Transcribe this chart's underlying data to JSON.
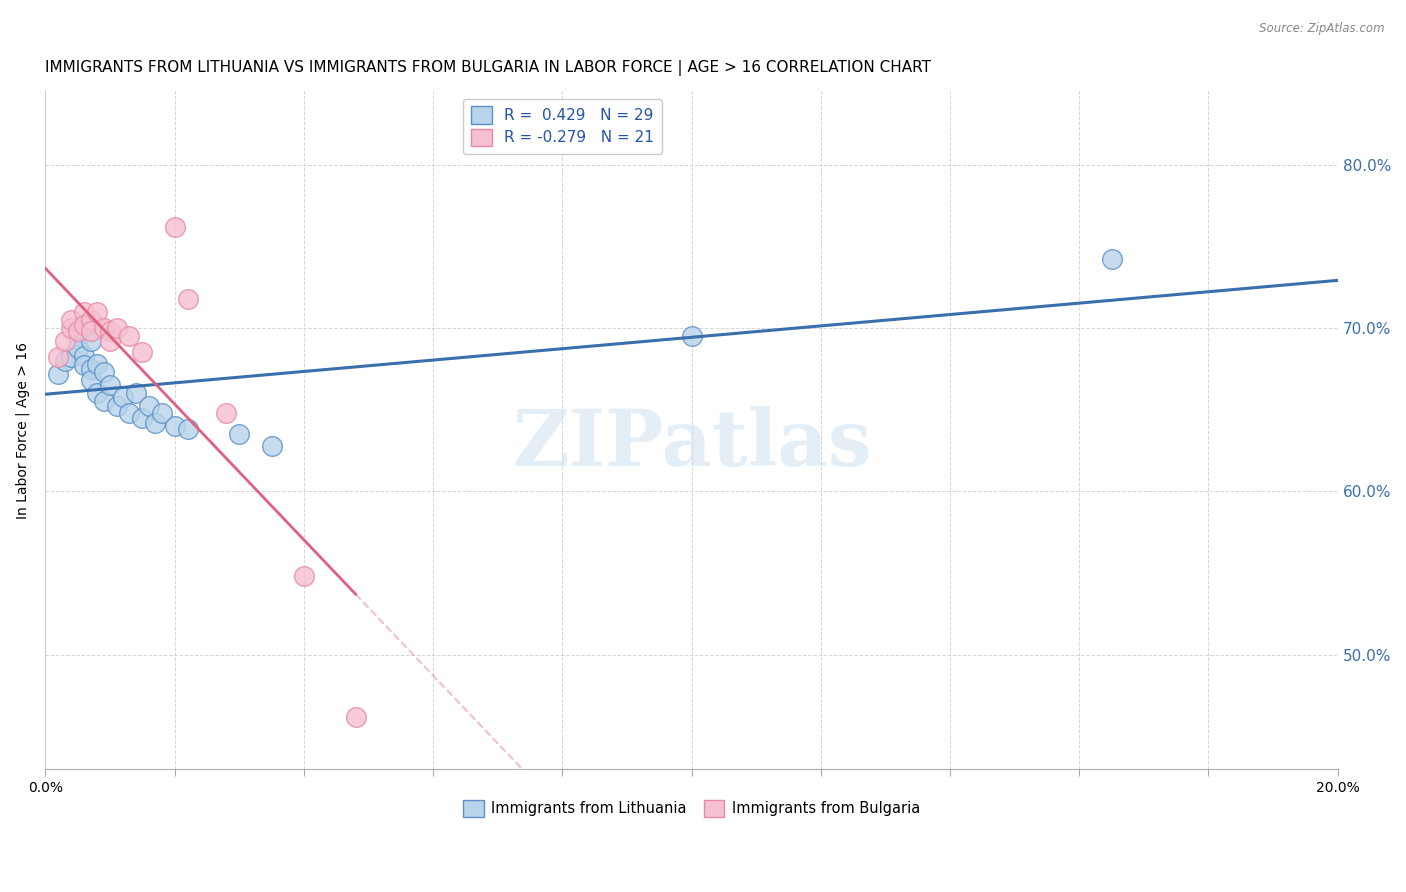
{
  "title": "IMMIGRANTS FROM LITHUANIA VS IMMIGRANTS FROM BULGARIA IN LABOR FORCE | AGE > 16 CORRELATION CHART",
  "source": "Source: ZipAtlas.com",
  "ylabel": "In Labor Force | Age > 16",
  "ylabel_right_ticks": [
    "80.0%",
    "70.0%",
    "60.0%",
    "50.0%"
  ],
  "ylabel_right_vals": [
    0.8,
    0.7,
    0.6,
    0.5
  ],
  "xlim": [
    0.0,
    0.2
  ],
  "ylim": [
    0.43,
    0.845
  ],
  "watermark": "ZIPatlas",
  "legend_blue_r": "0.429",
  "legend_blue_n": "29",
  "legend_pink_r": "-0.279",
  "legend_pink_n": "21",
  "blue_fill": "#b8d4ea",
  "pink_fill": "#f5c0cf",
  "blue_edge": "#5a8fc8",
  "pink_edge": "#e888a8",
  "blue_line_color": "#3a6fad",
  "pink_line_color": "#e06080",
  "xticks": [
    0.0,
    0.02,
    0.04,
    0.06,
    0.08,
    0.1,
    0.12,
    0.14,
    0.16,
    0.18,
    0.2
  ],
  "blue_scatter": [
    [
      0.002,
      0.672
    ],
    [
      0.003,
      0.68
    ],
    [
      0.004,
      0.682
    ],
    [
      0.005,
      0.695
    ],
    [
      0.005,
      0.688
    ],
    [
      0.006,
      0.683
    ],
    [
      0.006,
      0.677
    ],
    [
      0.007,
      0.692
    ],
    [
      0.007,
      0.675
    ],
    [
      0.007,
      0.668
    ],
    [
      0.008,
      0.678
    ],
    [
      0.008,
      0.66
    ],
    [
      0.009,
      0.673
    ],
    [
      0.009,
      0.655
    ],
    [
      0.01,
      0.665
    ],
    [
      0.011,
      0.652
    ],
    [
      0.012,
      0.658
    ],
    [
      0.013,
      0.648
    ],
    [
      0.014,
      0.66
    ],
    [
      0.015,
      0.645
    ],
    [
      0.016,
      0.652
    ],
    [
      0.017,
      0.642
    ],
    [
      0.018,
      0.648
    ],
    [
      0.02,
      0.64
    ],
    [
      0.022,
      0.638
    ],
    [
      0.03,
      0.635
    ],
    [
      0.035,
      0.628
    ],
    [
      0.1,
      0.695
    ],
    [
      0.165,
      0.742
    ]
  ],
  "pink_scatter": [
    [
      0.002,
      0.682
    ],
    [
      0.003,
      0.692
    ],
    [
      0.004,
      0.7
    ],
    [
      0.004,
      0.705
    ],
    [
      0.005,
      0.698
    ],
    [
      0.006,
      0.71
    ],
    [
      0.006,
      0.702
    ],
    [
      0.007,
      0.705
    ],
    [
      0.007,
      0.698
    ],
    [
      0.008,
      0.71
    ],
    [
      0.009,
      0.7
    ],
    [
      0.01,
      0.698
    ],
    [
      0.01,
      0.692
    ],
    [
      0.011,
      0.7
    ],
    [
      0.013,
      0.695
    ],
    [
      0.015,
      0.685
    ],
    [
      0.02,
      0.762
    ],
    [
      0.022,
      0.718
    ],
    [
      0.028,
      0.648
    ],
    [
      0.04,
      0.548
    ],
    [
      0.048,
      0.462
    ]
  ],
  "grid_color": "#cccccc",
  "background_color": "#ffffff",
  "title_fontsize": 11,
  "axis_label_fontsize": 10,
  "tick_fontsize": 9
}
